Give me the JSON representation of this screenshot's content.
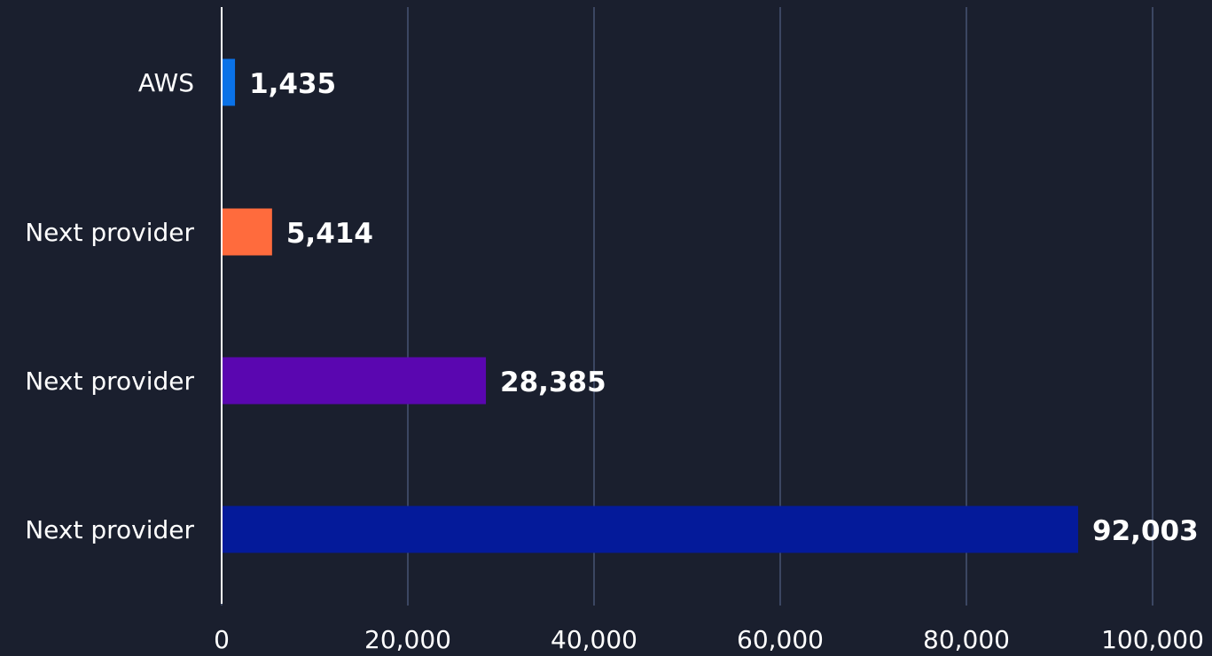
{
  "chart_data": {
    "type": "bar",
    "orientation": "horizontal",
    "categories": [
      "AWS",
      "Next provider",
      "Next provider",
      "Next provider"
    ],
    "values": [
      1435,
      5414,
      28385,
      92003
    ],
    "value_labels": [
      "1,435",
      "5,414",
      "28,385",
      "92,003"
    ],
    "bar_colors": [
      "#0a72e8",
      "#ff6b3d",
      "#5a06b0",
      "#041a9a"
    ],
    "xlim": [
      0,
      100000
    ],
    "xticks": [
      0,
      20000,
      40000,
      60000,
      80000,
      100000
    ],
    "xtick_labels": [
      "0",
      "20,000",
      "40,000",
      "60,000",
      "80,000",
      "100,000"
    ],
    "grid": true,
    "title": "",
    "xlabel": "",
    "ylabel": ""
  },
  "colors": {
    "background": "#1a1f2e",
    "gridline": "#5c6c95",
    "axis": "#ffffff",
    "text": "#ffffff"
  }
}
